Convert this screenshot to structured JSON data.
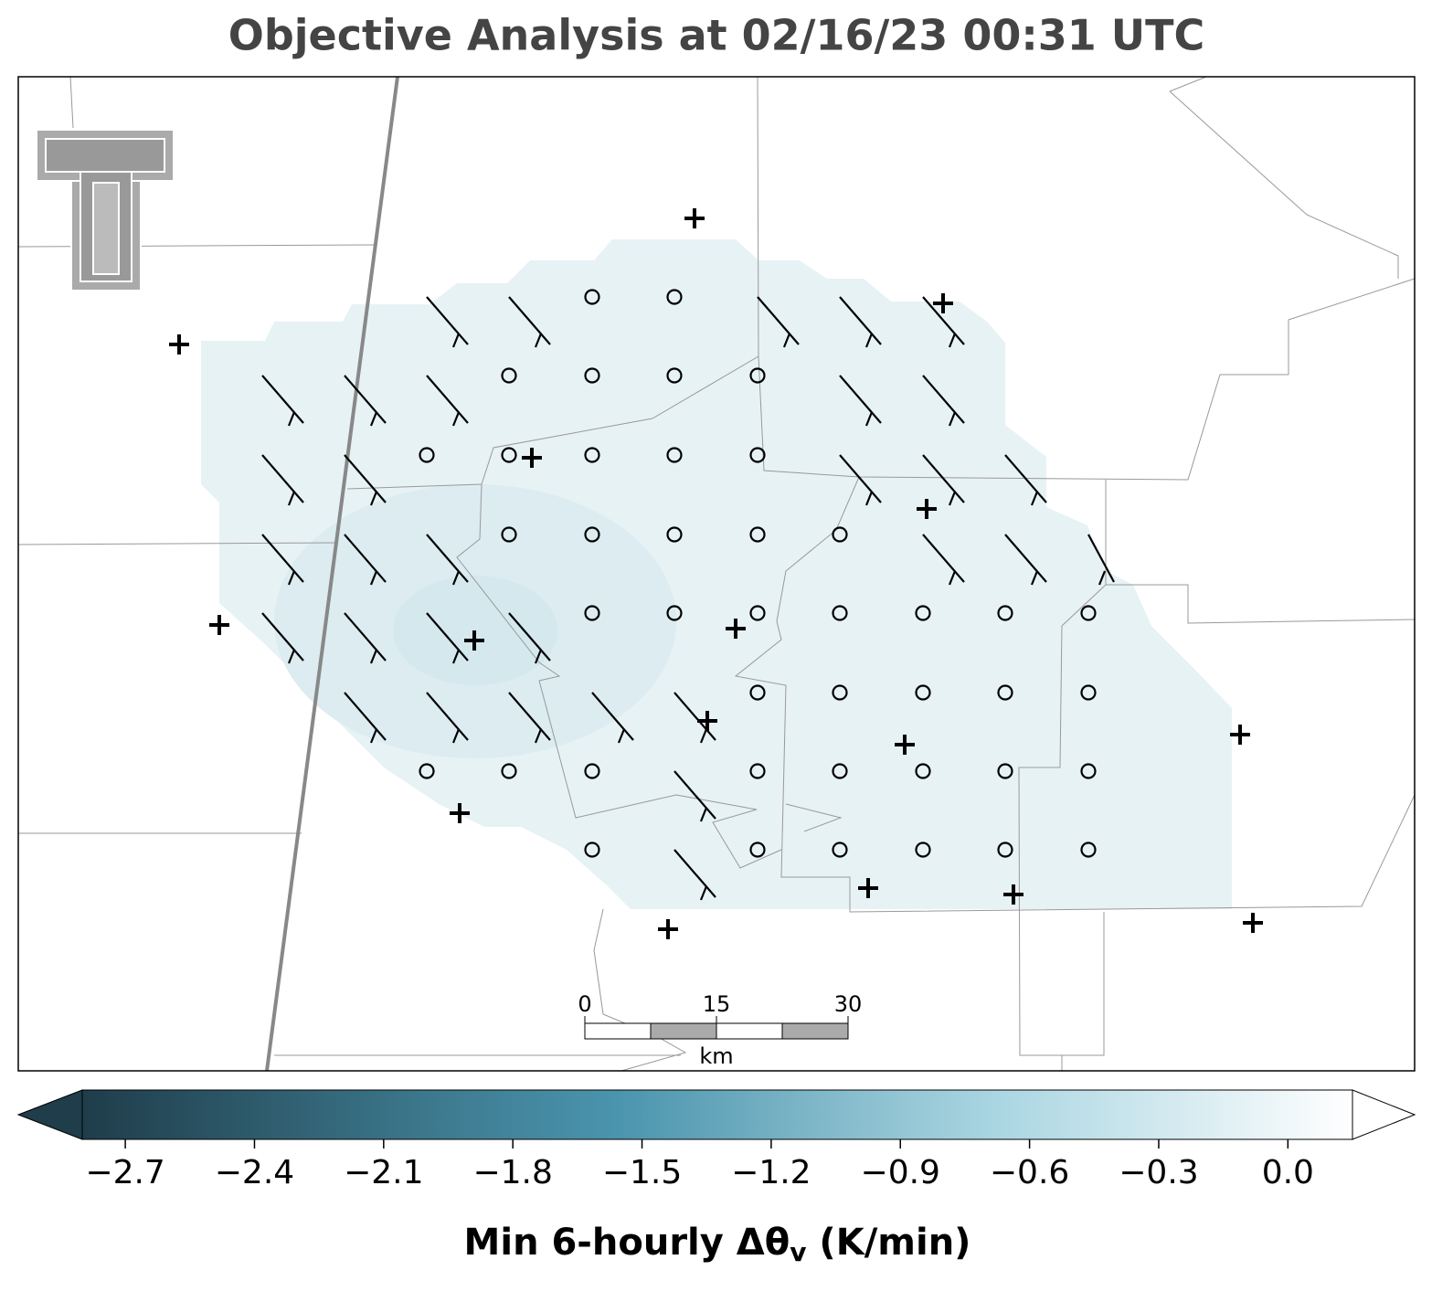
{
  "title": "Objective Analysis at 02/16/23 00:31 UTC",
  "scale_bar": {
    "lim": [
      0,
      30
    ],
    "ticks": [
      0,
      15,
      30
    ],
    "unit": "km"
  },
  "colorbar": {
    "label": {
      "text": "Min 6-hourly Δθ",
      "subscript": "v",
      "suffix": " (K/min)"
    },
    "lim": [
      -2.8,
      0.15
    ],
    "ticks": [
      {
        "value": -2.7,
        "label": "−2.7"
      },
      {
        "value": -2.4,
        "label": "−2.4"
      },
      {
        "value": -2.1,
        "label": "−2.1"
      },
      {
        "value": -1.8,
        "label": "−1.8"
      },
      {
        "value": -1.5,
        "label": "−1.5"
      },
      {
        "value": -1.2,
        "label": "−1.2"
      },
      {
        "value": -0.9,
        "label": "−0.9"
      },
      {
        "value": -0.6,
        "label": "−0.6"
      },
      {
        "value": -0.3,
        "label": "−0.3"
      },
      {
        "value": 0,
        "label": "0.0"
      }
    ]
  }
}
